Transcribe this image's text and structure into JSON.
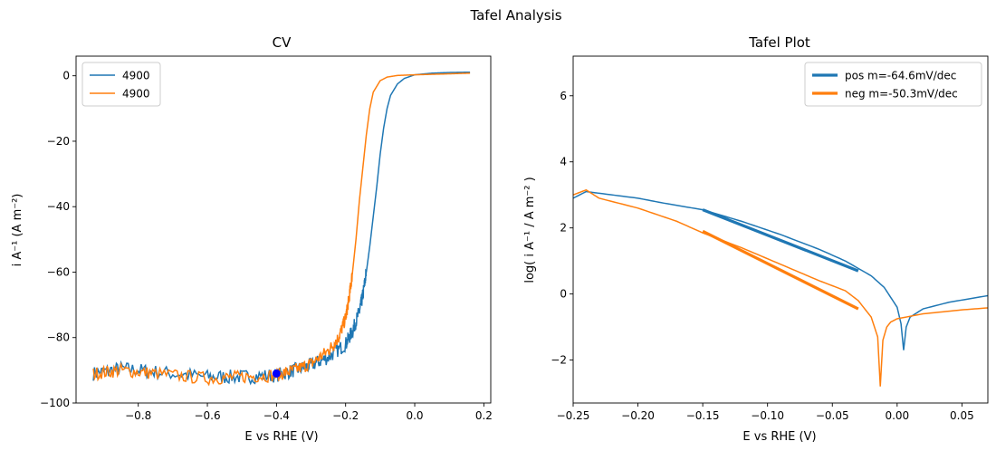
{
  "suptitle": "Tafel Analysis",
  "chart_data": [
    {
      "type": "line",
      "title": "CV",
      "xlabel": "E vs RHE (V)",
      "ylabel": "i A⁻¹ (A m⁻²)",
      "xlim": [
        -0.98,
        0.22
      ],
      "ylim": [
        -100,
        6
      ],
      "xticks": [
        -0.8,
        -0.6,
        -0.4,
        -0.2,
        0.0,
        0.2
      ],
      "xtick_labels": [
        "−0.8",
        "−0.6",
        "−0.4",
        "−0.2",
        "0.0",
        "0.2"
      ],
      "yticks": [
        -100,
        -80,
        -60,
        -40,
        -20,
        0
      ],
      "ytick_labels": [
        "−100",
        "−80",
        "−60",
        "−40",
        "−20",
        "0"
      ],
      "legend_position": "upper-left",
      "series": [
        {
          "name": "4900",
          "color": "#1f77b4",
          "noise": 2.2,
          "points": [
            [
              -0.93,
              -91
            ],
            [
              -0.85,
              -89.5
            ],
            [
              -0.75,
              -90.5
            ],
            [
              -0.6,
              -92
            ],
            [
              -0.5,
              -92
            ],
            [
              -0.4,
              -91.5
            ],
            [
              -0.35,
              -90
            ],
            [
              -0.3,
              -88.5
            ],
            [
              -0.25,
              -86
            ],
            [
              -0.2,
              -82
            ],
            [
              -0.18,
              -78
            ],
            [
              -0.16,
              -72
            ],
            [
              -0.15,
              -67
            ],
            [
              -0.14,
              -60
            ],
            [
              -0.13,
              -52
            ],
            [
              -0.12,
              -43
            ],
            [
              -0.11,
              -34
            ],
            [
              -0.1,
              -24
            ],
            [
              -0.09,
              -16
            ],
            [
              -0.08,
              -10
            ],
            [
              -0.07,
              -6
            ],
            [
              -0.05,
              -2.5
            ],
            [
              -0.03,
              -0.8
            ],
            [
              0.0,
              0.3
            ],
            [
              0.05,
              0.8
            ],
            [
              0.1,
              1.0
            ],
            [
              0.16,
              1.1
            ]
          ]
        },
        {
          "name": "4900",
          "color": "#ff7f0e",
          "noise": 2.0,
          "points": [
            [
              -0.93,
              -91
            ],
            [
              -0.85,
              -90
            ],
            [
              -0.75,
              -91
            ],
            [
              -0.6,
              -92.5
            ],
            [
              -0.5,
              -92
            ],
            [
              -0.4,
              -91.5
            ],
            [
              -0.35,
              -90
            ],
            [
              -0.3,
              -88
            ],
            [
              -0.25,
              -84
            ],
            [
              -0.22,
              -80
            ],
            [
              -0.2,
              -74
            ],
            [
              -0.19,
              -68
            ],
            [
              -0.18,
              -60
            ],
            [
              -0.17,
              -50
            ],
            [
              -0.16,
              -38
            ],
            [
              -0.15,
              -28
            ],
            [
              -0.14,
              -18
            ],
            [
              -0.13,
              -10
            ],
            [
              -0.12,
              -5
            ],
            [
              -0.1,
              -1.5
            ],
            [
              -0.08,
              -0.4
            ],
            [
              -0.05,
              0.1
            ],
            [
              0.0,
              0.3
            ],
            [
              0.1,
              0.6
            ],
            [
              0.16,
              0.8
            ]
          ]
        }
      ],
      "marker": {
        "x": -0.4,
        "y": -91,
        "color": "#0000ff"
      }
    },
    {
      "type": "line",
      "title": "Tafel Plot",
      "xlabel": "E vs RHE (V)",
      "ylabel": "log( i A⁻¹ / A m⁻² )",
      "xlim": [
        -0.25,
        0.07
      ],
      "ylim": [
        -3.3,
        7.2
      ],
      "xticks": [
        -0.25,
        -0.2,
        -0.15,
        -0.1,
        -0.05,
        0.0,
        0.05
      ],
      "xtick_labels": [
        "−0.25",
        "−0.20",
        "−0.15",
        "−0.10",
        "−0.05",
        "0.00",
        "0.05"
      ],
      "yticks": [
        -2,
        0,
        2,
        4,
        6
      ],
      "ytick_labels": [
        "−2",
        "0",
        "2",
        "4",
        "6"
      ],
      "legend_position": "upper-right",
      "series": [
        {
          "name": "pos m=-64.6mV/dec",
          "color": "#1f77b4",
          "legend_thick": true,
          "points": [
            [
              -0.25,
              2.9
            ],
            [
              -0.24,
              3.1
            ],
            [
              -0.23,
              3.05
            ],
            [
              -0.2,
              2.9
            ],
            [
              -0.18,
              2.75
            ],
            [
              -0.15,
              2.55
            ],
            [
              -0.12,
              2.2
            ],
            [
              -0.09,
              1.8
            ],
            [
              -0.06,
              1.35
            ],
            [
              -0.04,
              1.0
            ],
            [
              -0.02,
              0.55
            ],
            [
              -0.01,
              0.2
            ],
            [
              0.0,
              -0.4
            ],
            [
              0.003,
              -0.9
            ],
            [
              0.005,
              -1.7
            ],
            [
              0.007,
              -1.0
            ],
            [
              0.01,
              -0.7
            ],
            [
              0.02,
              -0.45
            ],
            [
              0.04,
              -0.25
            ],
            [
              0.07,
              -0.05
            ]
          ]
        },
        {
          "name": "neg m=-50.3mV/dec",
          "color": "#ff7f0e",
          "legend_thick": true,
          "points": [
            [
              -0.25,
              3.0
            ],
            [
              -0.24,
              3.15
            ],
            [
              -0.23,
              2.9
            ],
            [
              -0.2,
              2.6
            ],
            [
              -0.17,
              2.2
            ],
            [
              -0.15,
              1.85
            ],
            [
              -0.12,
              1.4
            ],
            [
              -0.09,
              0.9
            ],
            [
              -0.06,
              0.4
            ],
            [
              -0.04,
              0.1
            ],
            [
              -0.03,
              -0.2
            ],
            [
              -0.02,
              -0.7
            ],
            [
              -0.015,
              -1.3
            ],
            [
              -0.013,
              -2.8
            ],
            [
              -0.011,
              -1.4
            ],
            [
              -0.008,
              -1.0
            ],
            [
              -0.005,
              -0.85
            ],
            [
              0.0,
              -0.75
            ],
            [
              0.02,
              -0.6
            ],
            [
              0.05,
              -0.48
            ],
            [
              0.07,
              -0.42
            ]
          ]
        }
      ],
      "fits": [
        {
          "color": "#1f77b4",
          "x": [
            -0.15,
            -0.03
          ],
          "y": [
            2.55,
            0.7
          ]
        },
        {
          "color": "#ff7f0e",
          "x": [
            -0.15,
            -0.03
          ],
          "y": [
            1.9,
            -0.45
          ]
        }
      ]
    }
  ]
}
